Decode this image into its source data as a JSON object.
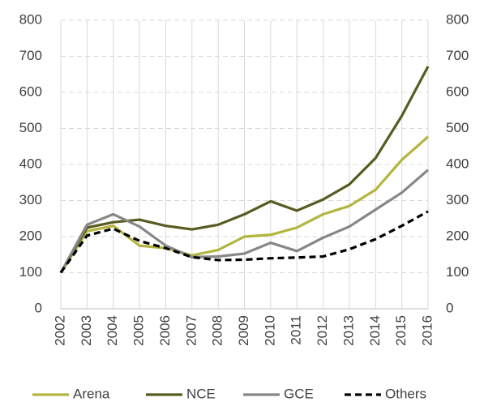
{
  "chart_data": {
    "type": "line",
    "categories": [
      "2002",
      "2003",
      "2004",
      "2005",
      "2006",
      "2007",
      "2008",
      "2009",
      "2010",
      "2011",
      "2012",
      "2013",
      "2014",
      "2015",
      "2016"
    ],
    "series": [
      {
        "name": "Arena",
        "color": "#b3b53f",
        "values": [
          100,
          215,
          230,
          175,
          168,
          148,
          163,
          200,
          205,
          225,
          262,
          285,
          330,
          413,
          477
        ]
      },
      {
        "name": "NCE",
        "color": "#585b20",
        "values": [
          100,
          225,
          240,
          247,
          230,
          220,
          233,
          262,
          298,
          272,
          303,
          345,
          418,
          535,
          672
        ]
      },
      {
        "name": "GCE",
        "color": "#878787",
        "values": [
          100,
          233,
          262,
          228,
          175,
          143,
          145,
          153,
          183,
          160,
          197,
          228,
          275,
          322,
          385
        ]
      },
      {
        "name": "Others",
        "color": "#000000",
        "dashed": true,
        "values": [
          100,
          203,
          222,
          188,
          168,
          143,
          135,
          136,
          140,
          142,
          145,
          165,
          193,
          230,
          270
        ]
      }
    ],
    "ylim": [
      0,
      800
    ],
    "yticks": [
      0,
      100,
      200,
      300,
      400,
      500,
      600,
      700,
      800
    ],
    "y2lim": [
      0,
      800
    ],
    "y2ticks": [
      0,
      100,
      200,
      300,
      400,
      500,
      600,
      700,
      800
    ],
    "grid": true,
    "legend": "bottom"
  }
}
